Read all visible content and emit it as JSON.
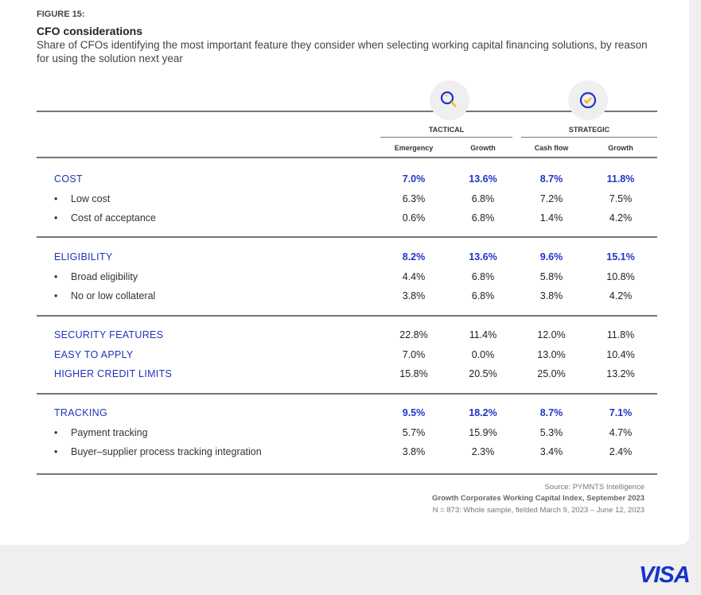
{
  "figure_label": "FIGURE 15:",
  "title": "CFO considerations",
  "subtitle": "Share of CFOs identifying the most important feature they consider when selecting working capital financing solutions, by reason for using the solution next year",
  "groups": [
    {
      "label": "TACTICAL",
      "icon": "magnifier-icon"
    },
    {
      "label": "STRATEGIC",
      "icon": "check-circle-icon"
    }
  ],
  "columns": [
    "Emergency",
    "Growth",
    "Cash flow",
    "Growth"
  ],
  "sections": [
    {
      "rows": [
        {
          "label": "COST",
          "type": "head",
          "values": [
            "7.0%",
            "13.6%",
            "8.7%",
            "11.8%"
          ],
          "bold": true
        },
        {
          "label": "Low cost",
          "type": "bullet",
          "values": [
            "6.3%",
            "6.8%",
            "7.2%",
            "7.5%"
          ]
        },
        {
          "label": "Cost of acceptance",
          "type": "bullet",
          "values": [
            "0.6%",
            "6.8%",
            "1.4%",
            "4.2%"
          ]
        }
      ]
    },
    {
      "rows": [
        {
          "label": "ELIGIBILITY",
          "type": "head",
          "values": [
            "8.2%",
            "13.6%",
            "9.6%",
            "15.1%"
          ],
          "bold": true
        },
        {
          "label": "Broad eligibility",
          "type": "bullet",
          "values": [
            "4.4%",
            "6.8%",
            "5.8%",
            "10.8%"
          ]
        },
        {
          "label": "No or low collateral",
          "type": "bullet",
          "values": [
            "3.8%",
            "6.8%",
            "3.8%",
            "4.2%"
          ]
        }
      ]
    },
    {
      "rows": [
        {
          "label": "SECURITY FEATURES",
          "type": "head",
          "values": [
            "22.8%",
            "11.4%",
            "12.0%",
            "11.8%"
          ]
        },
        {
          "label": "EASY TO APPLY",
          "type": "head",
          "values": [
            "7.0%",
            "0.0%",
            "13.0%",
            "10.4%"
          ]
        },
        {
          "label": "HIGHER CREDIT LIMITS",
          "type": "head",
          "values": [
            "15.8%",
            "20.5%",
            "25.0%",
            "13.2%"
          ]
        }
      ]
    },
    {
      "rows": [
        {
          "label": "TRACKING",
          "type": "head",
          "values": [
            "9.5%",
            "18.2%",
            "8.7%",
            "7.1%"
          ],
          "bold": true
        },
        {
          "label": "Payment tracking",
          "type": "bullet",
          "values": [
            "5.7%",
            "15.9%",
            "5.3%",
            "4.7%"
          ]
        },
        {
          "label": "Buyer–supplier process tracking integration",
          "type": "bullet",
          "values": [
            "3.8%",
            "2.3%",
            "3.4%",
            "2.4%"
          ]
        }
      ]
    }
  ],
  "source": {
    "line1": "Source: PYMNTS Intelligence",
    "line2": "Growth Corporates Working Capital Index, September 2023",
    "line3": "N = 873: Whole sample, fielded March 9, 2023 – June 12, 2023"
  },
  "brand": "VISA"
}
